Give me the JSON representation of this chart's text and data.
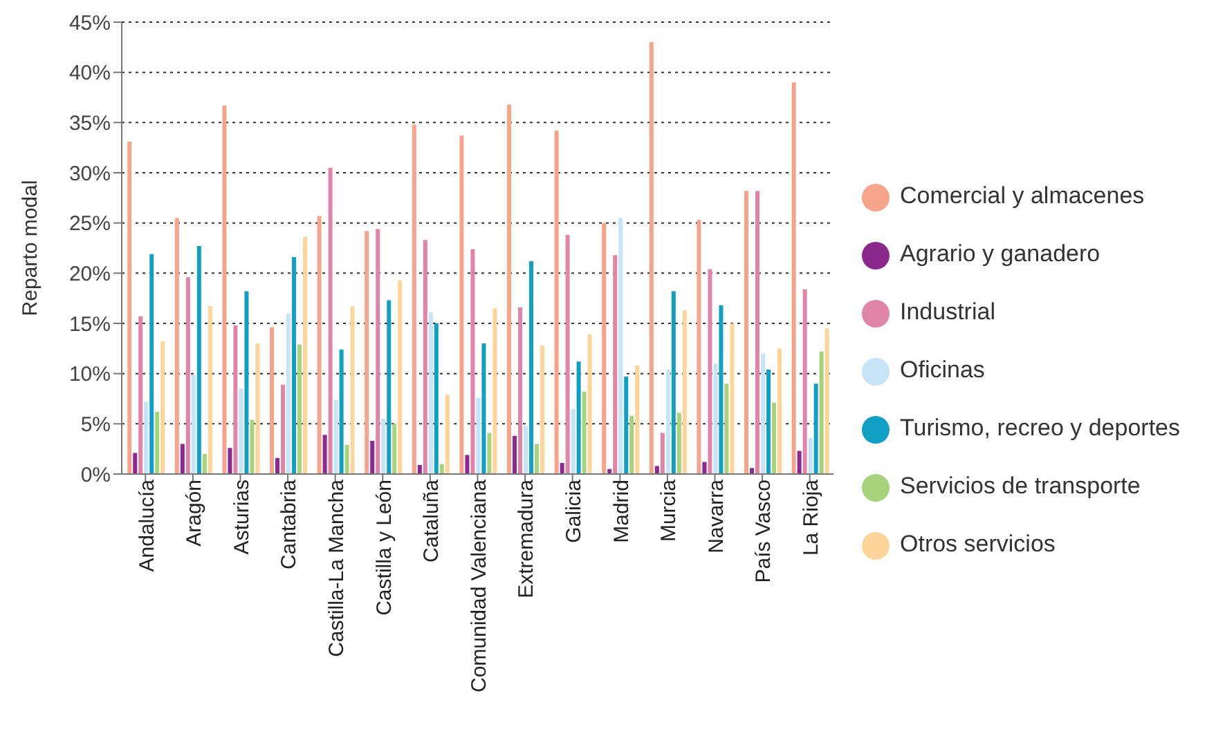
{
  "chart_data": {
    "type": "bar",
    "ylabel": "Reparto modal",
    "categories": [
      "Andalucía",
      "Aragón",
      "Asturias",
      "Cantabria",
      "Castilla-La Mancha",
      "Castilla y León",
      "Cataluña",
      "Comunidad Valenciana",
      "Extremadura",
      "Galicia",
      "Madrid",
      "Murcia",
      "Navarra",
      "País Vasco",
      "La Rioja"
    ],
    "series": [
      {
        "name": "Comercial y almacenes",
        "color": "#f7a48c",
        "values": [
          33.1,
          25.5,
          36.7,
          14.6,
          25.7,
          24.2,
          34.8,
          33.7,
          36.8,
          34.2,
          25.0,
          43.0,
          25.3,
          28.2,
          39.0
        ]
      },
      {
        "name": "Agrario y ganadero",
        "color": "#8b2a8c",
        "values": [
          2.1,
          3.0,
          2.6,
          1.6,
          3.9,
          3.3,
          0.9,
          1.9,
          3.8,
          1.1,
          0.5,
          0.8,
          1.2,
          0.6,
          2.3
        ]
      },
      {
        "name": "Industrial",
        "color": "#e085a8",
        "values": [
          15.7,
          19.6,
          14.8,
          8.9,
          30.5,
          24.4,
          23.3,
          22.4,
          16.6,
          23.8,
          21.8,
          4.1,
          20.4,
          28.2,
          18.4
        ]
      },
      {
        "name": "Oficinas",
        "color": "#c6e3f7",
        "values": [
          7.2,
          9.9,
          8.5,
          16.0,
          7.4,
          5.5,
          16.1,
          7.6,
          4.8,
          6.5,
          25.5,
          10.4,
          11.0,
          12.0,
          3.6
        ]
      },
      {
        "name": "Turismo, recreo y deportes",
        "color": "#129fc4",
        "values": [
          21.9,
          22.7,
          18.2,
          21.6,
          12.4,
          17.3,
          15.0,
          13.0,
          21.2,
          11.2,
          9.7,
          18.2,
          16.8,
          10.4,
          9.0
        ]
      },
      {
        "name": "Servicios de transporte",
        "color": "#a8d37c",
        "values": [
          6.2,
          2.0,
          5.4,
          12.9,
          2.9,
          5.0,
          1.0,
          4.1,
          3.0,
          8.2,
          5.8,
          6.1,
          9.0,
          7.1,
          12.2
        ]
      },
      {
        "name": "Otros servicios",
        "color": "#fdd49a",
        "values": [
          13.2,
          16.7,
          13.0,
          23.6,
          16.7,
          19.3,
          7.9,
          16.5,
          12.8,
          13.9,
          10.8,
          16.3,
          15.0,
          12.5,
          14.5
        ]
      }
    ],
    "ylim": [
      0,
      45
    ],
    "yticks": [
      {
        "value": 0,
        "label": "0%"
      },
      {
        "value": 5,
        "label": "5%"
      },
      {
        "value": 10,
        "label": "10%"
      },
      {
        "value": 15,
        "label": "15%"
      },
      {
        "value": 20,
        "label": "20%"
      },
      {
        "value": 25,
        "label": "25%"
      },
      {
        "value": 30,
        "label": "30%"
      },
      {
        "value": 35,
        "label": "35%"
      },
      {
        "value": 40,
        "label": "40%"
      },
      {
        "value": 45,
        "label": "45%"
      }
    ],
    "grid": "y",
    "legend": "right"
  }
}
